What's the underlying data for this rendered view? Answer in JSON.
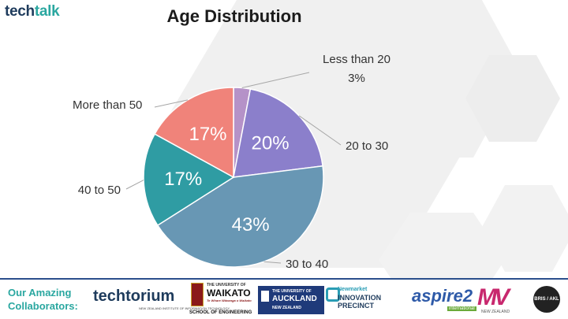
{
  "brand": {
    "logo_text_main": "tech",
    "logo_text_accent": "talk"
  },
  "chart_data": {
    "type": "pie",
    "title": "Age Distribution",
    "slices": [
      {
        "label": "Less than 20",
        "value": 3,
        "value_label": "3%",
        "color": "#b592c8"
      },
      {
        "label": "20 to 30",
        "value": 20,
        "value_label": "20%",
        "color": "#8b7fcb"
      },
      {
        "label": "30 to 40",
        "value": 43,
        "value_label": "43%",
        "color": "#6897b4"
      },
      {
        "label": "40 to 50",
        "value": 17,
        "value_label": "17%",
        "color": "#2f9ca3"
      },
      {
        "label": "More than 50",
        "value": 17,
        "value_label": "17%",
        "color": "#f0837a"
      }
    ]
  },
  "footer": {
    "label_line1": "Our Amazing",
    "label_line2": "Collaborators:",
    "partners": {
      "techtorium": "techtorium",
      "techtorium_sub": "NEW ZEALAND INSTITUTE OF INFORMATION TECHNOLOGY",
      "waikato_top": "THE UNIVERSITY OF",
      "waikato_name": "WAIKATO",
      "waikato_maori": "Te Whare Wānanga o Waikato",
      "waikato_school": "SCHOOL OF ENGINEERING",
      "auckland_top": "THE UNIVERSITY OF",
      "auckland_name": "AUCKLAND",
      "auckland_sub": "NEW ZEALAND",
      "newmarket_1": "Newmarket",
      "newmarket_2": "INNOVATION",
      "newmarket_3": "PRECINCT",
      "aspire": "aspire2",
      "aspire_sub": "international",
      "mv": "MV",
      "mv_sub": "NEW ZEALAND",
      "bris": "BRIS / AKL"
    }
  },
  "colors": {
    "hexagon": "#eeeeee",
    "footer_border": "#2b4f8c",
    "footer_label": "#2aa7a0"
  }
}
